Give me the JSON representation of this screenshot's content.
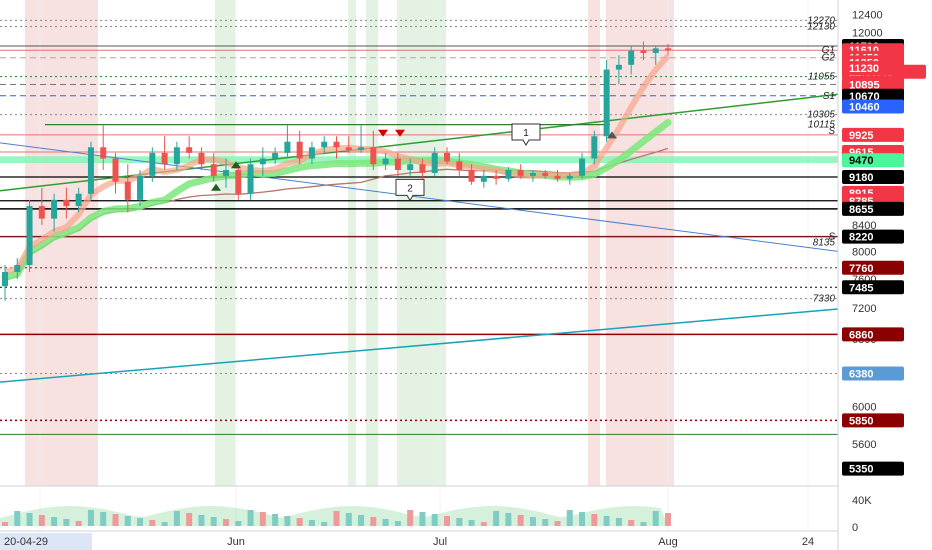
{
  "chart_data": {
    "type": "candlestick",
    "title": "",
    "y_axis": {
      "scale": "log",
      "range": [
        5200,
        12600
      ],
      "ticks": [
        "12400",
        "12000",
        "8400",
        "8000",
        "7600",
        "7200",
        "6800",
        "6400",
        "6000",
        "5600"
      ]
    },
    "x_axis": {
      "start_label": "20-04-29",
      "ticks": [
        "Jun",
        "Jul",
        "Aug",
        "24"
      ]
    },
    "price_labels": [
      {
        "value": "11700",
        "color": "#000000"
      },
      {
        "value": "11610",
        "color": "#f23645"
      },
      {
        "value": "11450",
        "color": "#f23645"
      },
      {
        "value": "22:38:43",
        "color": "#f23645"
      },
      {
        "value": "11350",
        "color": "#f23645"
      },
      {
        "value": "11230",
        "color": "#f23645"
      },
      {
        "value": "10895",
        "color": "#f23645"
      },
      {
        "value": "10670",
        "color": "#000000"
      },
      {
        "value": "10460",
        "color": "#2962ff"
      },
      {
        "value": "9925",
        "color": "#f23645"
      },
      {
        "value": "9615",
        "color": "#f23645"
      },
      {
        "value": "9470",
        "color": "#4cf59a"
      },
      {
        "value": "9180",
        "color": "#000000"
      },
      {
        "value": "8915",
        "color": "#f23645"
      },
      {
        "value": "8785",
        "color": "#f23645"
      },
      {
        "value": "8655",
        "color": "#000000"
      },
      {
        "value": "8220",
        "color": "#000000"
      },
      {
        "value": "7760",
        "color": "#8b0000"
      },
      {
        "value": "7485",
        "color": "#000000"
      },
      {
        "value": "6860",
        "color": "#8b0000"
      },
      {
        "value": "6380",
        "color": "#5b9bd5"
      },
      {
        "value": "5850",
        "color": "#8b0000"
      },
      {
        "value": "5350",
        "color": "#000000"
      }
    ],
    "level_annotations": [
      {
        "text": "12270",
        "value": 12270
      },
      {
        "text": "12130",
        "value": 12130
      },
      {
        "text": "G1",
        "value": 11610
      },
      {
        "text": "G2",
        "value": 11450
      },
      {
        "text": "11055",
        "value": 11055
      },
      {
        "text": "S1",
        "value": 10670
      },
      {
        "text": "10305",
        "value": 10305
      },
      {
        "text": "10115",
        "value": 10115
      },
      {
        "text": "S",
        "value": 10000
      },
      {
        "text": "S",
        "value": 8220
      },
      {
        "text": "8135",
        "value": 8135
      },
      {
        "text": "7330",
        "value": 7330
      }
    ],
    "wave_labels": [
      "1",
      "2"
    ],
    "volume_axis": [
      "40K",
      "0"
    ],
    "candles_ohlc_approx": [
      [
        7500,
        7800,
        7300,
        7700
      ],
      [
        7700,
        7900,
        7600,
        7800
      ],
      [
        7800,
        8800,
        7700,
        8700
      ],
      [
        8700,
        9000,
        8400,
        8500
      ],
      [
        8500,
        8900,
        8300,
        8800
      ],
      [
        8800,
        9000,
        8500,
        8700
      ],
      [
        8700,
        9000,
        8600,
        8900
      ],
      [
        8900,
        9800,
        8800,
        9700
      ],
      [
        9700,
        10100,
        9300,
        9500
      ],
      [
        9500,
        9600,
        8900,
        9100
      ],
      [
        9100,
        9400,
        8600,
        8800
      ],
      [
        8800,
        9300,
        8700,
        9200
      ],
      [
        9200,
        9700,
        9100,
        9600
      ],
      [
        9600,
        9900,
        9300,
        9400
      ],
      [
        9400,
        9800,
        9300,
        9700
      ],
      [
        9700,
        9900,
        9500,
        9600
      ],
      [
        9600,
        9700,
        9300,
        9400
      ],
      [
        9400,
        9600,
        9100,
        9200
      ],
      [
        9200,
        9500,
        9000,
        9300
      ],
      [
        9300,
        9400,
        8800,
        8900
      ],
      [
        8900,
        9500,
        8800,
        9400
      ],
      [
        9400,
        9700,
        9200,
        9500
      ],
      [
        9500,
        9700,
        9400,
        9600
      ],
      [
        9600,
        10100,
        9500,
        9800
      ],
      [
        9800,
        10000,
        9400,
        9500
      ],
      [
        9500,
        9800,
        9400,
        9700
      ],
      [
        9700,
        9900,
        9600,
        9800
      ],
      [
        9800,
        9900,
        9500,
        9700
      ],
      [
        9700,
        9900,
        9600,
        9650
      ],
      [
        9650,
        10100,
        9600,
        9700
      ],
      [
        9700,
        10000,
        9300,
        9400
      ],
      [
        9400,
        9600,
        9300,
        9500
      ],
      [
        9500,
        9600,
        9200,
        9300
      ],
      [
        9300,
        9500,
        9200,
        9400
      ],
      [
        9400,
        9500,
        9100,
        9250
      ],
      [
        9250,
        9700,
        9200,
        9600
      ],
      [
        9600,
        9700,
        9400,
        9450
      ],
      [
        9450,
        9600,
        9200,
        9300
      ],
      [
        9300,
        9400,
        9050,
        9100
      ],
      [
        9100,
        9300,
        9000,
        9200
      ],
      [
        9200,
        9300,
        9050,
        9150
      ],
      [
        9150,
        9350,
        9100,
        9300
      ],
      [
        9300,
        9400,
        9150,
        9200
      ],
      [
        9200,
        9300,
        9100,
        9250
      ],
      [
        9250,
        9300,
        9150,
        9200
      ],
      [
        9200,
        9300,
        9100,
        9150
      ],
      [
        9150,
        9250,
        9050,
        9200
      ],
      [
        9200,
        9600,
        9150,
        9500
      ],
      [
        9500,
        10000,
        9400,
        9900
      ],
      [
        9900,
        11400,
        9800,
        11200
      ],
      [
        11200,
        11500,
        10900,
        11300
      ],
      [
        11300,
        11700,
        11100,
        11600
      ],
      [
        11600,
        11800,
        11400,
        11550
      ],
      [
        11550,
        11700,
        11300,
        11650
      ],
      [
        11650,
        11750,
        11500,
        11610
      ]
    ]
  }
}
